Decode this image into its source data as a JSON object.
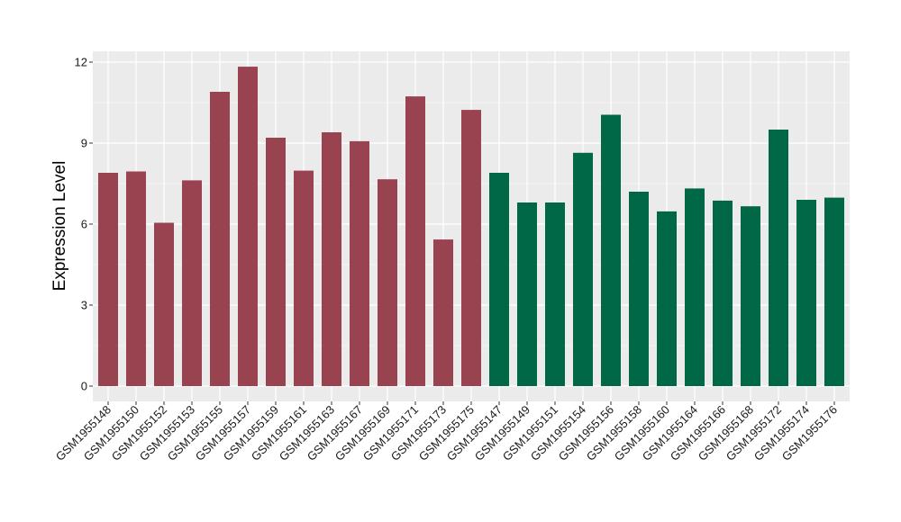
{
  "chart_data": {
    "type": "bar",
    "title": "",
    "xlabel": "",
    "ylabel": "Expression Level",
    "ylim": [
      0,
      12.5
    ],
    "yticks": [
      0,
      3,
      6,
      9,
      12
    ],
    "grid": true,
    "legend": "none",
    "colors": {
      "group1": "#9A4350",
      "group2": "#006747",
      "panel": "#EBEBEB",
      "grid": "#FFFFFF"
    },
    "categories": [
      "GSM1955148",
      "GSM1955150",
      "GSM1955152",
      "GSM1955153",
      "GSM1955155",
      "GSM1955157",
      "GSM1955159",
      "GSM1955161",
      "GSM1955163",
      "GSM1955167",
      "GSM1955169",
      "GSM1955171",
      "GSM1955173",
      "GSM1955175",
      "GSM1955147",
      "GSM1955149",
      "GSM1955151",
      "GSM1955154",
      "GSM1955156",
      "GSM1955158",
      "GSM1955160",
      "GSM1955164",
      "GSM1955166",
      "GSM1955168",
      "GSM1955172",
      "GSM1955174",
      "GSM1955176"
    ],
    "values": [
      7.9,
      7.95,
      6.05,
      7.62,
      10.9,
      11.83,
      9.2,
      7.98,
      9.4,
      9.07,
      7.66,
      10.73,
      5.43,
      10.23,
      7.9,
      6.8,
      6.8,
      8.64,
      10.05,
      7.2,
      6.47,
      7.32,
      6.87,
      6.66,
      9.5,
      6.9,
      6.98
    ],
    "groups": [
      "group1",
      "group1",
      "group1",
      "group1",
      "group1",
      "group1",
      "group1",
      "group1",
      "group1",
      "group1",
      "group1",
      "group1",
      "group1",
      "group1",
      "group2",
      "group2",
      "group2",
      "group2",
      "group2",
      "group2",
      "group2",
      "group2",
      "group2",
      "group2",
      "group2",
      "group2",
      "group2"
    ]
  }
}
